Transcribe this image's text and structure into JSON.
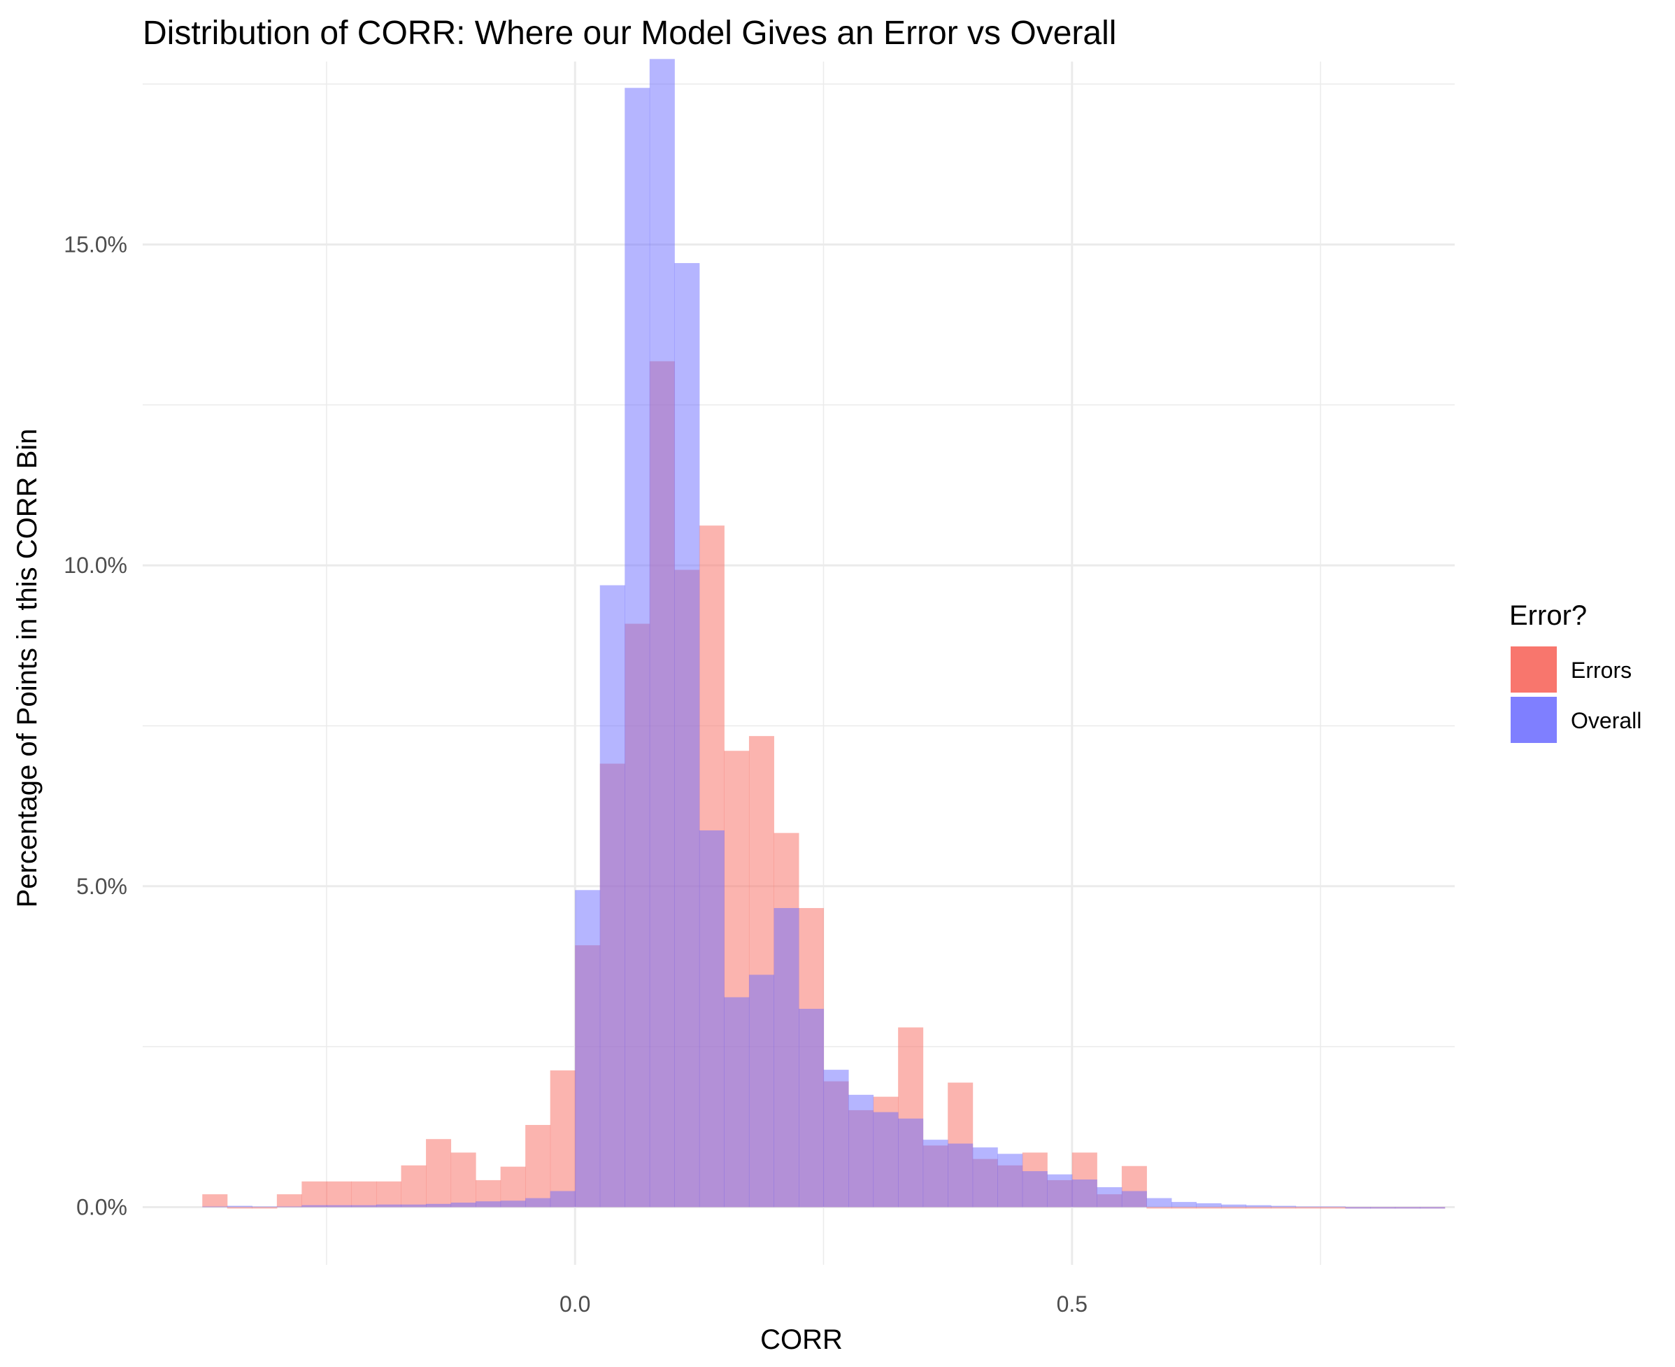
{
  "chart_data": {
    "type": "bar",
    "subtype": "overlapping-histogram",
    "title": "Distribution of CORR: Where our Model Gives an Error vs Overall",
    "xlabel": "CORR",
    "ylabel": "Percentage of Points in this CORR Bin",
    "xlim": [
      -0.435,
      0.885
    ],
    "ylim": [
      -0.009,
      0.1785
    ],
    "x_ticks": [
      {
        "value": 0.0,
        "label": "0.0"
      },
      {
        "value": 0.5,
        "label": "0.5"
      }
    ],
    "y_ticks": [
      {
        "value": 0.0,
        "label": "0.0%"
      },
      {
        "value": 0.05,
        "label": "5.0%"
      },
      {
        "value": 0.1,
        "label": "10.0%"
      },
      {
        "value": 0.15,
        "label": "15.0%"
      }
    ],
    "bin_width": 0.025,
    "bin_start": -0.375,
    "series": [
      {
        "name": "Errors",
        "color": "#f8766d",
        "opacity": 0.55,
        "values": [
          0.002,
          0,
          0,
          0.002,
          0.004,
          0.004,
          0.004,
          0.004,
          0.0065,
          0.0106,
          0.0085,
          0.0042,
          0.0063,
          0.0128,
          0.0213,
          0.0408,
          0.0691,
          0.0909,
          0.1318,
          0.0993,
          0.1062,
          0.0711,
          0.0734,
          0.0583,
          0.0466,
          0.0196,
          0.0151,
          0.0172,
          0.028,
          0.0096,
          0.0194,
          0.0075,
          0.0065,
          0.0085,
          0.0042,
          0.0085,
          0.002,
          0.0064,
          0,
          0,
          0,
          0,
          0,
          0,
          0,
          0,
          0,
          0,
          0,
          0
        ]
      },
      {
        "name": "Overall",
        "color": "#6b6bff",
        "opacity": 0.5,
        "values": [
          0.0001,
          0.0002,
          0.0001,
          0.0001,
          0.0003,
          0.0003,
          0.0003,
          0.0004,
          0.0004,
          0.0005,
          0.0007,
          0.0009,
          0.001,
          0.0014,
          0.0025,
          0.0494,
          0.0969,
          0.1744,
          0.1789,
          0.1471,
          0.0587,
          0.0327,
          0.0362,
          0.0466,
          0.0309,
          0.0214,
          0.0175,
          0.0148,
          0.0138,
          0.0105,
          0.0099,
          0.0093,
          0.0083,
          0.0056,
          0.0051,
          0.0043,
          0.0031,
          0.0025,
          0.0014,
          0.0008,
          0.0006,
          0.0004,
          0.0003,
          0.0002,
          0.0001,
          0.0001,
          0,
          0,
          0,
          0
        ]
      }
    ],
    "grid": true,
    "legend": {
      "title": "Error?",
      "position": "right",
      "entries": [
        {
          "label": "Errors",
          "color": "#f8766d"
        },
        {
          "label": "Overall",
          "color": "#7f7fff"
        }
      ]
    }
  }
}
